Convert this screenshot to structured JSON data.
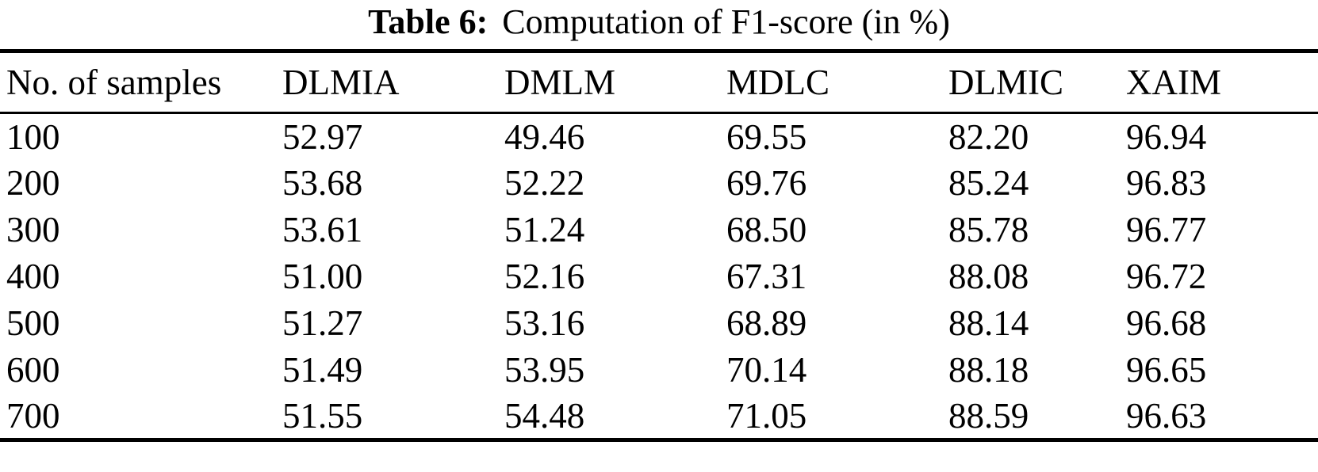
{
  "title": {
    "label": "Table 6:",
    "caption": "Computation of F1-score (in %)"
  },
  "table": {
    "headers": [
      "No. of samples",
      "DLMIA",
      "DMLM",
      "MDLC",
      "DLMIC",
      "XAIM"
    ],
    "rows": [
      {
        "cells": [
          "100",
          "52.97",
          "49.46",
          "69.55",
          "82.20",
          "96.94"
        ]
      },
      {
        "cells": [
          "200",
          "53.68",
          "52.22",
          "69.76",
          "85.24",
          "96.83"
        ]
      },
      {
        "cells": [
          "300",
          "53.61",
          "51.24",
          "68.50",
          "85.78",
          "96.77"
        ]
      },
      {
        "cells": [
          "400",
          "51.00",
          "52.16",
          "67.31",
          "88.08",
          "96.72"
        ]
      },
      {
        "cells": [
          "500",
          "51.27",
          "53.16",
          "68.89",
          "88.14",
          "96.68"
        ]
      },
      {
        "cells": [
          "600",
          "51.49",
          "53.95",
          "70.14",
          "88.18",
          "96.65"
        ]
      },
      {
        "cells": [
          "700",
          "51.55",
          "54.48",
          "71.05",
          "88.59",
          "96.63"
        ]
      }
    ]
  }
}
